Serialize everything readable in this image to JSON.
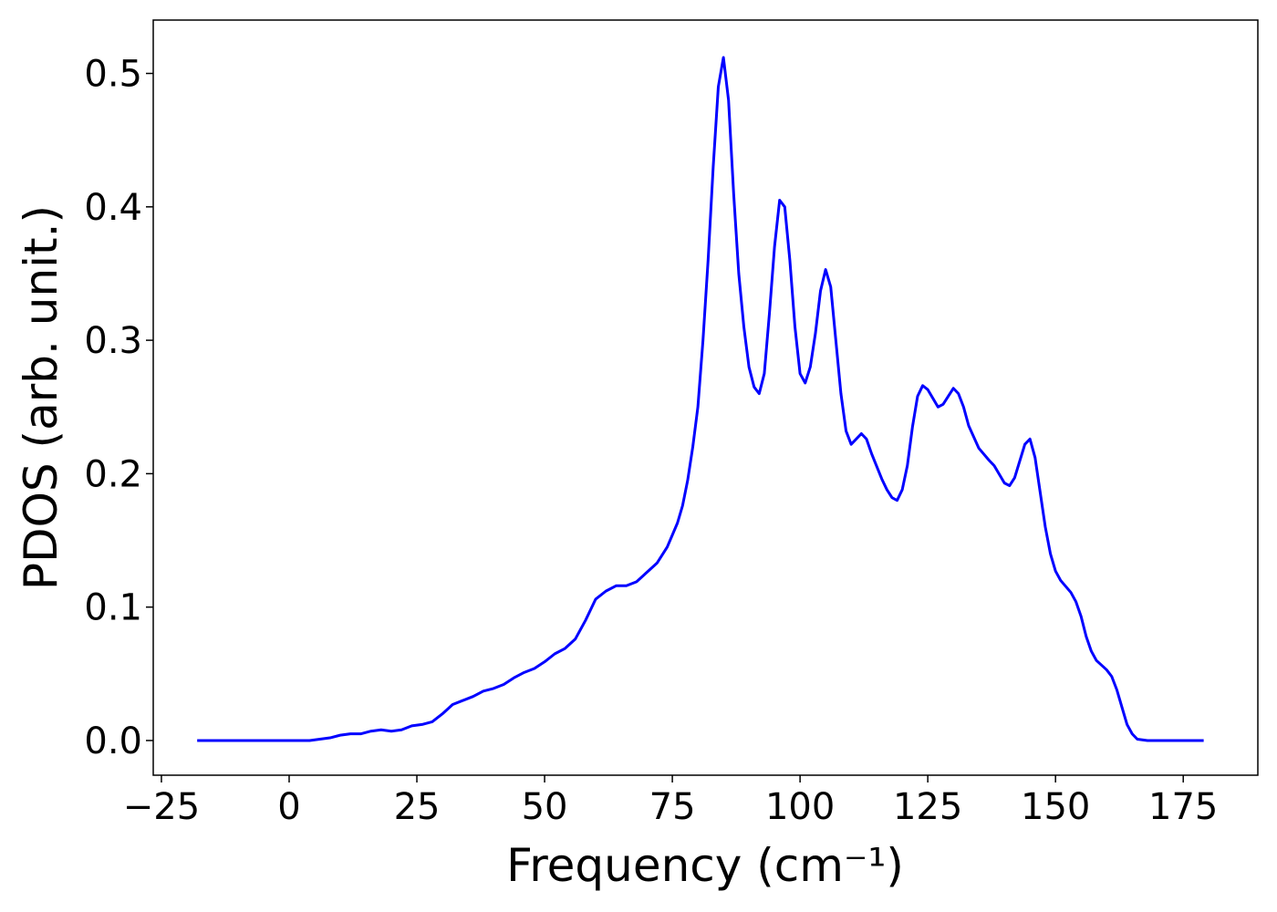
{
  "chart_data": {
    "type": "line",
    "xlabel": "Frequency (cm⁻¹)",
    "ylabel": "PDOS (arb. unit.)",
    "x": [
      -18,
      -10,
      0,
      4,
      6,
      8,
      10,
      12,
      14,
      16,
      18,
      20,
      22,
      24,
      26,
      28,
      30,
      32,
      34,
      36,
      38,
      40,
      42,
      44,
      46,
      48,
      50,
      52,
      54,
      56,
      58,
      60,
      62,
      64,
      66,
      68,
      70,
      72,
      74,
      76,
      77,
      78,
      79,
      80,
      81,
      82,
      83,
      84,
      85,
      86,
      87,
      88,
      89,
      90,
      91,
      92,
      93,
      94,
      95,
      96,
      97,
      98,
      99,
      100,
      101,
      102,
      103,
      104,
      105,
      106,
      107,
      108,
      109,
      110,
      112,
      113,
      114,
      116,
      117,
      118,
      119,
      120,
      121,
      122,
      123,
      124,
      125,
      127,
      128,
      130,
      131,
      132,
      133,
      135,
      137,
      138,
      140,
      141,
      142,
      144,
      145,
      146,
      147,
      148,
      149,
      150,
      151,
      153,
      154,
      155,
      156,
      157,
      158,
      160,
      161,
      162,
      163,
      164,
      165,
      166,
      168,
      170,
      179
    ],
    "series": [
      {
        "color": "#0000ff",
        "values": [
          0,
          0,
          0,
          0,
          0.001,
          0.002,
          0.004,
          0.005,
          0.005,
          0.007,
          0.008,
          0.007,
          0.008,
          0.011,
          0.012,
          0.014,
          0.02,
          0.027,
          0.03,
          0.033,
          0.037,
          0.039,
          0.042,
          0.047,
          0.051,
          0.054,
          0.059,
          0.065,
          0.069,
          0.076,
          0.09,
          0.106,
          0.112,
          0.116,
          0.116,
          0.119,
          0.126,
          0.133,
          0.145,
          0.163,
          0.176,
          0.195,
          0.22,
          0.25,
          0.3,
          0.36,
          0.43,
          0.49,
          0.512,
          0.48,
          0.41,
          0.35,
          0.31,
          0.28,
          0.265,
          0.26,
          0.275,
          0.32,
          0.37,
          0.405,
          0.4,
          0.36,
          0.31,
          0.275,
          0.268,
          0.28,
          0.305,
          0.337,
          0.353,
          0.34,
          0.3,
          0.26,
          0.232,
          0.222,
          0.23,
          0.226,
          0.215,
          0.196,
          0.188,
          0.182,
          0.18,
          0.188,
          0.206,
          0.235,
          0.258,
          0.266,
          0.263,
          0.25,
          0.252,
          0.264,
          0.26,
          0.25,
          0.236,
          0.219,
          0.21,
          0.206,
          0.193,
          0.191,
          0.197,
          0.222,
          0.226,
          0.212,
          0.186,
          0.16,
          0.14,
          0.127,
          0.12,
          0.111,
          0.104,
          0.093,
          0.078,
          0.067,
          0.06,
          0.053,
          0.048,
          0.038,
          0.025,
          0.012,
          0.005,
          0.001,
          0,
          0,
          0
        ]
      }
    ],
    "xlim": [
      -26.6,
      189.6
    ],
    "ylim": [
      -0.026,
      0.54
    ],
    "xticks": [
      {
        "value": -25,
        "label": "−25"
      },
      0,
      25,
      50,
      75,
      100,
      125,
      150,
      175
    ],
    "yticks": [
      {
        "value": 0,
        "label": "0.0"
      },
      0.1,
      0.2,
      0.3,
      0.4,
      0.5
    ]
  }
}
